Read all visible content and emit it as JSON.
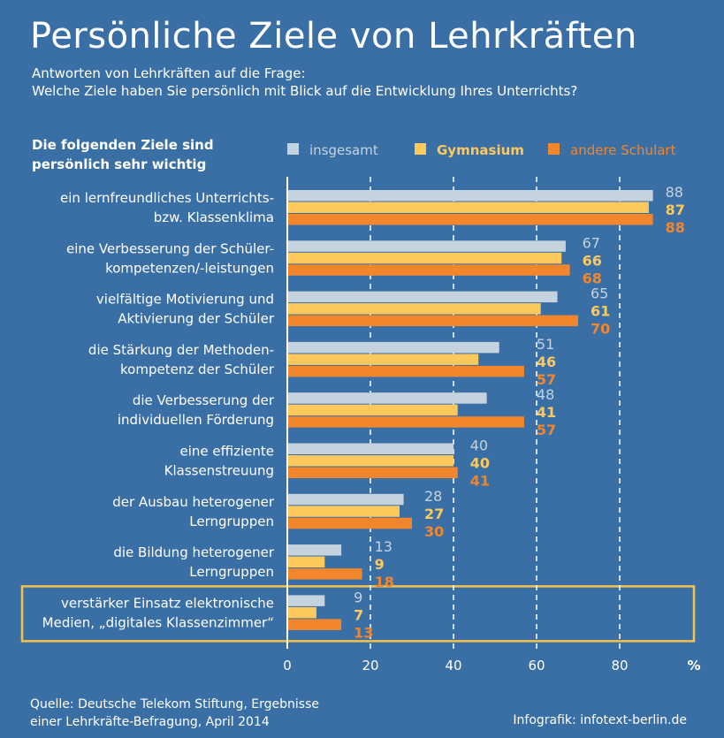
{
  "header": {
    "title": "Persönliche Ziele von Lehrkräften",
    "subtitle_line1": "Antworten von Lehrkräften auf die Frage:",
    "subtitle_line2": "Welche Ziele haben Sie persönlich mit Blick auf die Entwicklung Ihres Unterrichts?"
  },
  "section": {
    "heading_line1": "Die folgenden Ziele sind",
    "heading_line2": "persönlich sehr wichtig"
  },
  "colors": {
    "background": "#3a6fa6",
    "insgesamt": "#c5d3de",
    "gymnasium": "#fdc95c",
    "andere": "#f1862c",
    "highlight_border": "#f5c24a"
  },
  "chart_data": {
    "type": "bar",
    "orientation": "horizontal",
    "categories": [
      [
        "ein lernfreundliches Unterrichts-",
        "bzw. Klassenklima"
      ],
      [
        "eine Verbesserung der Schüler-",
        "kompetenzen/-leistungen"
      ],
      [
        "vielfältige Motivierung und",
        "Aktivierung der Schüler"
      ],
      [
        "die Stärkung der Methoden-",
        "kompetenz der Schüler"
      ],
      [
        "die Verbesserung der",
        "individuellen Förderung"
      ],
      [
        "eine effiziente",
        "Klassenstreuung"
      ],
      [
        "der Ausbau heterogener",
        "Lerngruppen"
      ],
      [
        "die Bildung heterogener",
        "Lerngruppen"
      ],
      [
        "verstärker Einsatz elektronische",
        "Medien, „digitales Klassenzimmer“"
      ]
    ],
    "series": [
      {
        "name": "insgesamt",
        "values": [
          88,
          67,
          65,
          51,
          48,
          40,
          28,
          13,
          9
        ]
      },
      {
        "name": "Gymnasium",
        "values": [
          87,
          66,
          61,
          46,
          41,
          40,
          27,
          9,
          7
        ]
      },
      {
        "name": "andere Schulart",
        "values": [
          88,
          68,
          70,
          57,
          57,
          41,
          30,
          18,
          13
        ]
      }
    ],
    "xlim": [
      0,
      90
    ],
    "xticks": [
      0,
      20,
      40,
      60,
      80
    ],
    "x_unit": "%",
    "highlighted_category_index": 8,
    "legend_position": "top"
  },
  "footer": {
    "source_line1": "Quelle: Deutsche Telekom Stiftung, Ergebnisse",
    "source_line2": "einer Lehrkräfte-Befragung, April 2014",
    "credit": "Infografik: infotext-berlin.de"
  }
}
